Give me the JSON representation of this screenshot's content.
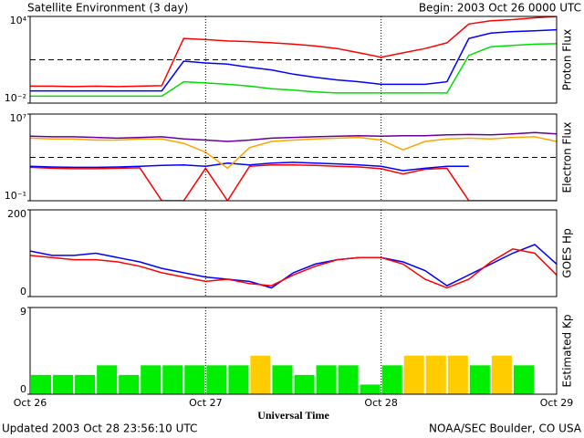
{
  "header": {
    "title": "Satellite Environment (3 day)",
    "begin": "Begin:  2003 Oct 26 0000 UTC"
  },
  "footer": {
    "updated": "Updated 2003 Oct 28 23:56:10 UTC",
    "source": "NOAA/SEC Boulder, CO USA"
  },
  "chart_data": [
    {
      "type": "line",
      "ylabel": "Proton Flux",
      "log_scale": true,
      "ylim": [
        0.01,
        10000
      ],
      "yticks": [
        {
          "value": 10000,
          "label": "10⁴"
        },
        {
          "value": 0.01,
          "label": "10⁻²"
        }
      ],
      "xlim": [
        0,
        3
      ],
      "xticks": [
        1,
        2
      ],
      "thresholds": [
        10
      ],
      "x": [
        0,
        0.125,
        0.25,
        0.375,
        0.5,
        0.625,
        0.75,
        0.875,
        1,
        1.125,
        1.25,
        1.375,
        1.5,
        1.625,
        1.75,
        1.875,
        2,
        2.125,
        2.25,
        2.375,
        2.5,
        2.625,
        2.75,
        2.875,
        3
      ],
      "series": [
        {
          "color": "#ff0000",
          "values": [
            0.15,
            0.15,
            0.14,
            0.15,
            0.14,
            0.15,
            0.16,
            300,
            250,
            200,
            180,
            150,
            120,
            90,
            60,
            30,
            15,
            30,
            60,
            150,
            3000,
            5000,
            6000,
            8000,
            10000
          ]
        },
        {
          "color": "#0000ff",
          "values": [
            0.07,
            0.07,
            0.07,
            0.07,
            0.07,
            0.07,
            0.07,
            8,
            6,
            5,
            3,
            2,
            1,
            0.6,
            0.4,
            0.3,
            0.2,
            0.2,
            0.2,
            0.3,
            300,
            700,
            900,
            1000,
            1200
          ]
        },
        {
          "color": "#00dd00",
          "values": [
            0.03,
            0.03,
            0.03,
            0.03,
            0.03,
            0.03,
            0.03,
            0.3,
            0.25,
            0.2,
            0.15,
            0.1,
            0.08,
            0.06,
            0.05,
            0.05,
            0.05,
            0.05,
            0.05,
            0.05,
            20,
            80,
            100,
            120,
            130
          ]
        }
      ]
    },
    {
      "type": "line",
      "ylabel": "Electron Flux",
      "log_scale": true,
      "ylim": [
        0.1,
        10000000
      ],
      "yticks": [
        {
          "value": 10000000,
          "label": "10⁷"
        },
        {
          "value": 0.1,
          "label": "10⁻¹"
        }
      ],
      "xlim": [
        0,
        3
      ],
      "xticks": [
        1,
        2
      ],
      "thresholds": [
        1000
      ],
      "x": [
        0,
        0.125,
        0.25,
        0.375,
        0.5,
        0.625,
        0.75,
        0.875,
        1,
        1.125,
        1.25,
        1.375,
        1.5,
        1.625,
        1.75,
        1.875,
        2,
        2.125,
        2.25,
        2.375,
        2.5,
        2.625,
        2.75,
        2.875,
        3
      ],
      "series": [
        {
          "color": "#ff0000",
          "values": [
            120,
            100,
            90,
            90,
            100,
            110,
            0.1,
            0.1,
            100,
            0.1,
            150,
            200,
            200,
            180,
            150,
            130,
            90,
            30,
            80,
            100,
            0.1,
            0.1,
            0.1,
            0.1,
            0.1
          ]
        },
        {
          "color": "#0000ff",
          "values": [
            150,
            130,
            120,
            120,
            130,
            150,
            180,
            200,
            150,
            300,
            200,
            300,
            350,
            300,
            250,
            200,
            150,
            60,
            100,
            150,
            150,
            null,
            null,
            null,
            null
          ]
        },
        {
          "color": "#ffa500",
          "values": [
            60000,
            50000,
            50000,
            40000,
            40000,
            50000,
            50000,
            20000,
            3000,
            100,
            8000,
            30000,
            40000,
            50000,
            60000,
            70000,
            40000,
            5000,
            30000,
            50000,
            60000,
            50000,
            70000,
            80000,
            30000
          ]
        },
        {
          "color": "#660099",
          "values": [
            90000,
            80000,
            80000,
            70000,
            60000,
            70000,
            80000,
            50000,
            40000,
            30000,
            40000,
            60000,
            70000,
            80000,
            90000,
            100000,
            90000,
            100000,
            100000,
            120000,
            130000,
            120000,
            150000,
            200000,
            150000
          ]
        }
      ]
    },
    {
      "type": "line",
      "ylabel": "GOES Hp",
      "ylim": [
        0,
        200
      ],
      "yticks": [
        200,
        0
      ],
      "xlim": [
        0,
        3
      ],
      "xticks": [
        1,
        2
      ],
      "x": [
        0,
        0.125,
        0.25,
        0.375,
        0.5,
        0.625,
        0.75,
        0.875,
        1,
        1.125,
        1.25,
        1.375,
        1.5,
        1.625,
        1.75,
        1.875,
        2,
        2.125,
        2.25,
        2.375,
        2.5,
        2.625,
        2.75,
        2.875,
        3
      ],
      "series": [
        {
          "color": "#0000ff",
          "values": [
            105,
            95,
            95,
            100,
            90,
            80,
            65,
            55,
            45,
            40,
            35,
            20,
            55,
            75,
            85,
            90,
            90,
            80,
            60,
            25,
            50,
            75,
            100,
            120,
            75
          ]
        },
        {
          "color": "#ff0000",
          "values": [
            95,
            90,
            85,
            85,
            80,
            70,
            55,
            45,
            35,
            40,
            30,
            25,
            50,
            70,
            85,
            90,
            90,
            75,
            40,
            20,
            40,
            80,
            110,
            100,
            50
          ]
        }
      ]
    },
    {
      "type": "bar",
      "ylabel": "Estimated Kp",
      "xlabel": "Universal Time",
      "ylim": [
        0,
        9
      ],
      "yticks": [
        9,
        0
      ],
      "xlim": [
        0,
        3
      ],
      "xticks": [
        {
          "value": 0,
          "label": "Oct 26"
        },
        {
          "value": 1,
          "label": "Oct 27"
        },
        {
          "value": 2,
          "label": "Oct 28"
        },
        {
          "value": 3,
          "label": "Oct 29"
        }
      ],
      "x": [
        0,
        0.125,
        0.25,
        0.375,
        0.5,
        0.625,
        0.75,
        0.875,
        1,
        1.125,
        1.25,
        1.375,
        1.5,
        1.625,
        1.75,
        1.875,
        2,
        2.125,
        2.25,
        2.375,
        2.5,
        2.625,
        2.75
      ],
      "values": [
        2,
        2,
        2,
        3,
        2,
        3,
        3,
        3,
        3,
        3,
        4,
        3,
        2,
        3,
        3,
        1,
        3,
        4,
        4,
        4,
        3,
        4,
        3
      ],
      "colors": [
        "#00ee00",
        "#00ee00",
        "#00ee00",
        "#00ee00",
        "#00ee00",
        "#00ee00",
        "#00ee00",
        "#00ee00",
        "#00ee00",
        "#00ee00",
        "#ffcc00",
        "#00ee00",
        "#00ee00",
        "#00ee00",
        "#00ee00",
        "#00ee00",
        "#00ee00",
        "#ffcc00",
        "#ffcc00",
        "#ffcc00",
        "#00ee00",
        "#ffcc00",
        "#00ee00"
      ]
    }
  ]
}
